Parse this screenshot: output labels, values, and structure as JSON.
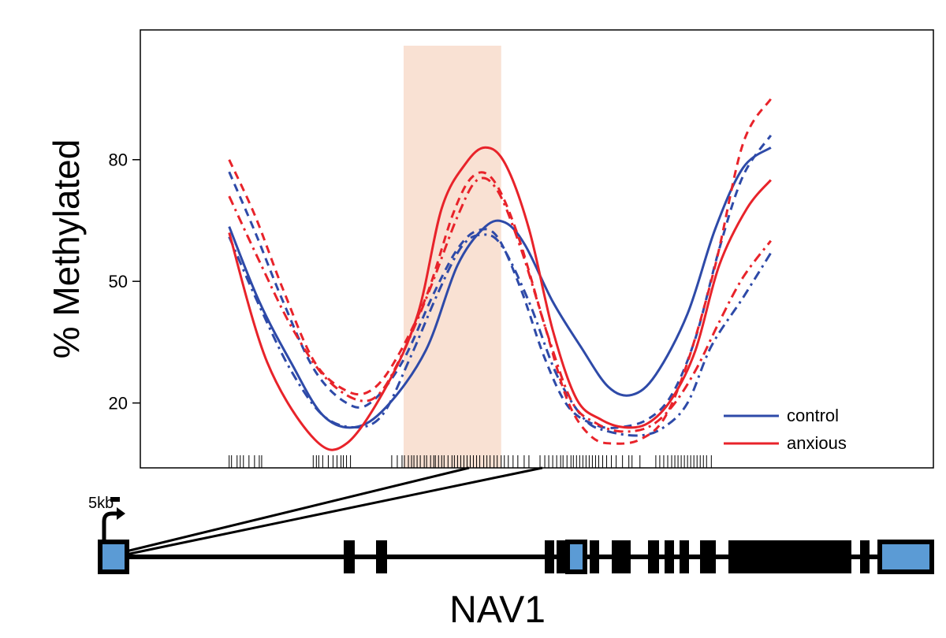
{
  "chart_data": {
    "type": "line",
    "ylabel": "% Methylated",
    "yticks": [
      20,
      50,
      80
    ],
    "ylim": [
      4,
      112
    ],
    "xlim": [
      0,
      100
    ],
    "grid": false,
    "legend_placement": "bottom-right",
    "legend": [
      {
        "name": "control",
        "color": "#2e4aa8"
      },
      {
        "name": "anxious",
        "color": "#e8232a"
      }
    ],
    "highlight_region": {
      "x_start": 33.2,
      "x_end": 45.5,
      "color": "#f9e1d3"
    },
    "series": [
      {
        "group": "control",
        "style": "solid",
        "color": "#2e4aa8",
        "points": [
          [
            11.2,
            63.5
          ],
          [
            15,
            45
          ],
          [
            19,
            30
          ],
          [
            23,
            17
          ],
          [
            27,
            14
          ],
          [
            31,
            19
          ],
          [
            36,
            33
          ],
          [
            40,
            54
          ],
          [
            43.5,
            63.5
          ],
          [
            46,
            64.5
          ],
          [
            48.5,
            59
          ],
          [
            52,
            45
          ],
          [
            55.5,
            34
          ],
          [
            59,
            24
          ],
          [
            62,
            22
          ],
          [
            65,
            27
          ],
          [
            69,
            42
          ],
          [
            72.5,
            63
          ],
          [
            76,
            78
          ],
          [
            79.5,
            83
          ]
        ]
      },
      {
        "group": "control",
        "style": "dashed",
        "color": "#2e4aa8",
        "points": [
          [
            11.2,
            77
          ],
          [
            14.5,
            62
          ],
          [
            18,
            45
          ],
          [
            22,
            28
          ],
          [
            26,
            20
          ],
          [
            29,
            20
          ],
          [
            33,
            30
          ],
          [
            37,
            47
          ],
          [
            40,
            58
          ],
          [
            42.5,
            62.5
          ],
          [
            45,
            61
          ],
          [
            48,
            48
          ],
          [
            51,
            31
          ],
          [
            54,
            19
          ],
          [
            57.5,
            14.5
          ],
          [
            60.5,
            14
          ],
          [
            64,
            16
          ],
          [
            67,
            22
          ],
          [
            70,
            36
          ],
          [
            73,
            58
          ],
          [
            76,
            76
          ],
          [
            79.5,
            86
          ]
        ]
      },
      {
        "group": "control",
        "style": "dashdot",
        "color": "#2e4aa8",
        "points": [
          [
            11.2,
            61
          ],
          [
            15,
            44
          ],
          [
            19,
            28
          ],
          [
            23,
            17
          ],
          [
            27,
            14
          ],
          [
            30.5,
            17
          ],
          [
            34,
            31
          ],
          [
            37.5,
            47
          ],
          [
            40.5,
            58.5
          ],
          [
            43,
            61.5
          ],
          [
            45.5,
            59
          ],
          [
            49,
            45
          ],
          [
            52.5,
            27
          ],
          [
            56,
            16
          ],
          [
            59,
            13
          ],
          [
            63,
            12
          ],
          [
            66,
            14
          ],
          [
            69,
            20
          ],
          [
            72,
            34
          ],
          [
            76,
            46
          ],
          [
            79.5,
            57
          ]
        ]
      },
      {
        "group": "anxious",
        "style": "solid",
        "color": "#e8232a",
        "points": [
          [
            11.2,
            62
          ],
          [
            16,
            30
          ],
          [
            22,
            11
          ],
          [
            26,
            10
          ],
          [
            31,
            24
          ],
          [
            35,
            42
          ],
          [
            38,
            68
          ],
          [
            41,
            79
          ],
          [
            43.5,
            83
          ],
          [
            46,
            79
          ],
          [
            49,
            63
          ],
          [
            52,
            38
          ],
          [
            55,
            21
          ],
          [
            58,
            16
          ],
          [
            61,
            14
          ],
          [
            64,
            15
          ],
          [
            67,
            21
          ],
          [
            70,
            33
          ],
          [
            73,
            54
          ],
          [
            76.5,
            68
          ],
          [
            79.5,
            75
          ]
        ]
      },
      {
        "group": "anxious",
        "style": "dashed",
        "color": "#e8232a",
        "points": [
          [
            11.2,
            80
          ],
          [
            14.5,
            66
          ],
          [
            18,
            48
          ],
          [
            22,
            30
          ],
          [
            26,
            23
          ],
          [
            29,
            23
          ],
          [
            32,
            30
          ],
          [
            36,
            46
          ],
          [
            39.5,
            67
          ],
          [
            42,
            76
          ],
          [
            44.5,
            75
          ],
          [
            47.5,
            62
          ],
          [
            51,
            39
          ],
          [
            54,
            20
          ],
          [
            57,
            11.5
          ],
          [
            60,
            10
          ],
          [
            63,
            11
          ],
          [
            66,
            16
          ],
          [
            69,
            30
          ],
          [
            72.5,
            54
          ],
          [
            76,
            84
          ],
          [
            79.5,
            95
          ]
        ]
      },
      {
        "group": "anxious",
        "style": "dashdot",
        "color": "#e8232a",
        "points": [
          [
            11.2,
            71
          ],
          [
            15,
            55
          ],
          [
            19,
            39
          ],
          [
            23,
            27
          ],
          [
            27,
            21
          ],
          [
            30,
            22
          ],
          [
            33,
            32
          ],
          [
            36.5,
            48
          ],
          [
            40,
            66
          ],
          [
            42.5,
            75
          ],
          [
            45,
            72.5
          ],
          [
            48,
            58
          ],
          [
            51.5,
            36
          ],
          [
            54.5,
            20
          ],
          [
            57.5,
            15
          ],
          [
            60.5,
            13
          ],
          [
            64,
            14
          ],
          [
            67,
            19
          ],
          [
            70,
            28
          ],
          [
            73,
            40
          ],
          [
            76,
            51
          ],
          [
            79.5,
            60
          ]
        ]
      }
    ],
    "rug_positions": [
      11.2,
      11.5,
      12.2,
      12.6,
      13.0,
      13.7,
      14.4,
      15.0,
      15.3,
      21.8,
      22.2,
      22.5,
      23.0,
      23.7,
      24.3,
      24.8,
      25.3,
      25.6,
      26.0,
      26.5,
      31.7,
      32.4,
      33.0,
      33.3,
      33.8,
      34.2,
      34.5,
      34.9,
      35.3,
      35.8,
      36.1,
      36.6,
      37.0,
      37.2,
      37.6,
      38.0,
      38.3,
      38.8,
      39.3,
      39.6,
      40.0,
      40.4,
      40.8,
      41.2,
      41.6,
      42.0,
      42.4,
      42.8,
      43.3,
      43.7,
      44.1,
      44.6,
      45.0,
      45.5,
      45.9,
      46.4,
      47.0,
      47.6,
      48.4,
      49.0,
      50.4,
      51.0,
      51.5,
      52.0,
      52.5,
      53.0,
      53.3,
      53.8,
      54.3,
      54.6,
      55.0,
      55.4,
      55.8,
      56.2,
      56.6,
      57.0,
      57.4,
      57.8,
      58.3,
      58.8,
      59.4,
      60.0,
      60.8,
      61.6,
      62.0,
      63.0,
      65.0,
      65.5,
      66.0,
      66.5,
      67.0,
      67.4,
      67.8,
      68.2,
      68.6,
      69.0,
      69.4,
      69.8,
      70.2,
      70.6,
      71.0,
      71.4,
      72.0
    ]
  },
  "gene": {
    "name": "NAV1",
    "scale_label": "5kb",
    "exon_fill": "#5b9bd5"
  }
}
